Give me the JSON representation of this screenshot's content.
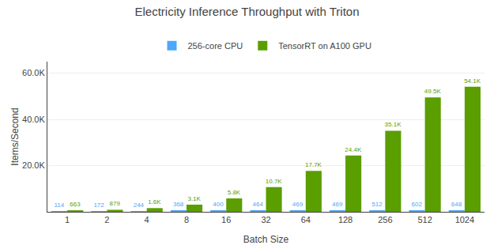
{
  "chart_data": {
    "type": "bar",
    "title": "Electricity Inference Throughput with Triton",
    "xlabel": "Batch Size",
    "ylabel": "Items/Second",
    "categories": [
      "1",
      "2",
      "4",
      "8",
      "16",
      "32",
      "64",
      "128",
      "256",
      "512",
      "1024"
    ],
    "series": [
      {
        "name": "256-core CPU",
        "color": "#4da6ff",
        "values": [
          114,
          172,
          244,
          368,
          400,
          464,
          469,
          469,
          512,
          602,
          648
        ]
      },
      {
        "name": "TensorRT on A100 GPU",
        "color": "#5a9e00",
        "values": [
          663,
          879,
          1600,
          3100,
          5800,
          10700,
          17700,
          24400,
          35100,
          49500,
          54100
        ],
        "value_labels": [
          "663",
          "879",
          "1.6K",
          "3.1K",
          "5.8K",
          "10.7K",
          "17.7K",
          "24.4K",
          "35.1K",
          "49.5K",
          "54.1K"
        ]
      }
    ],
    "ylim": [
      0,
      65000
    ],
    "yticks": [
      {
        "value": 20000,
        "label": "20.0K"
      },
      {
        "value": 40000,
        "label": "40.0K"
      },
      {
        "value": 60000,
        "label": "60.0K"
      }
    ],
    "grid": true,
    "legend": "top",
    "data_labels": true
  }
}
